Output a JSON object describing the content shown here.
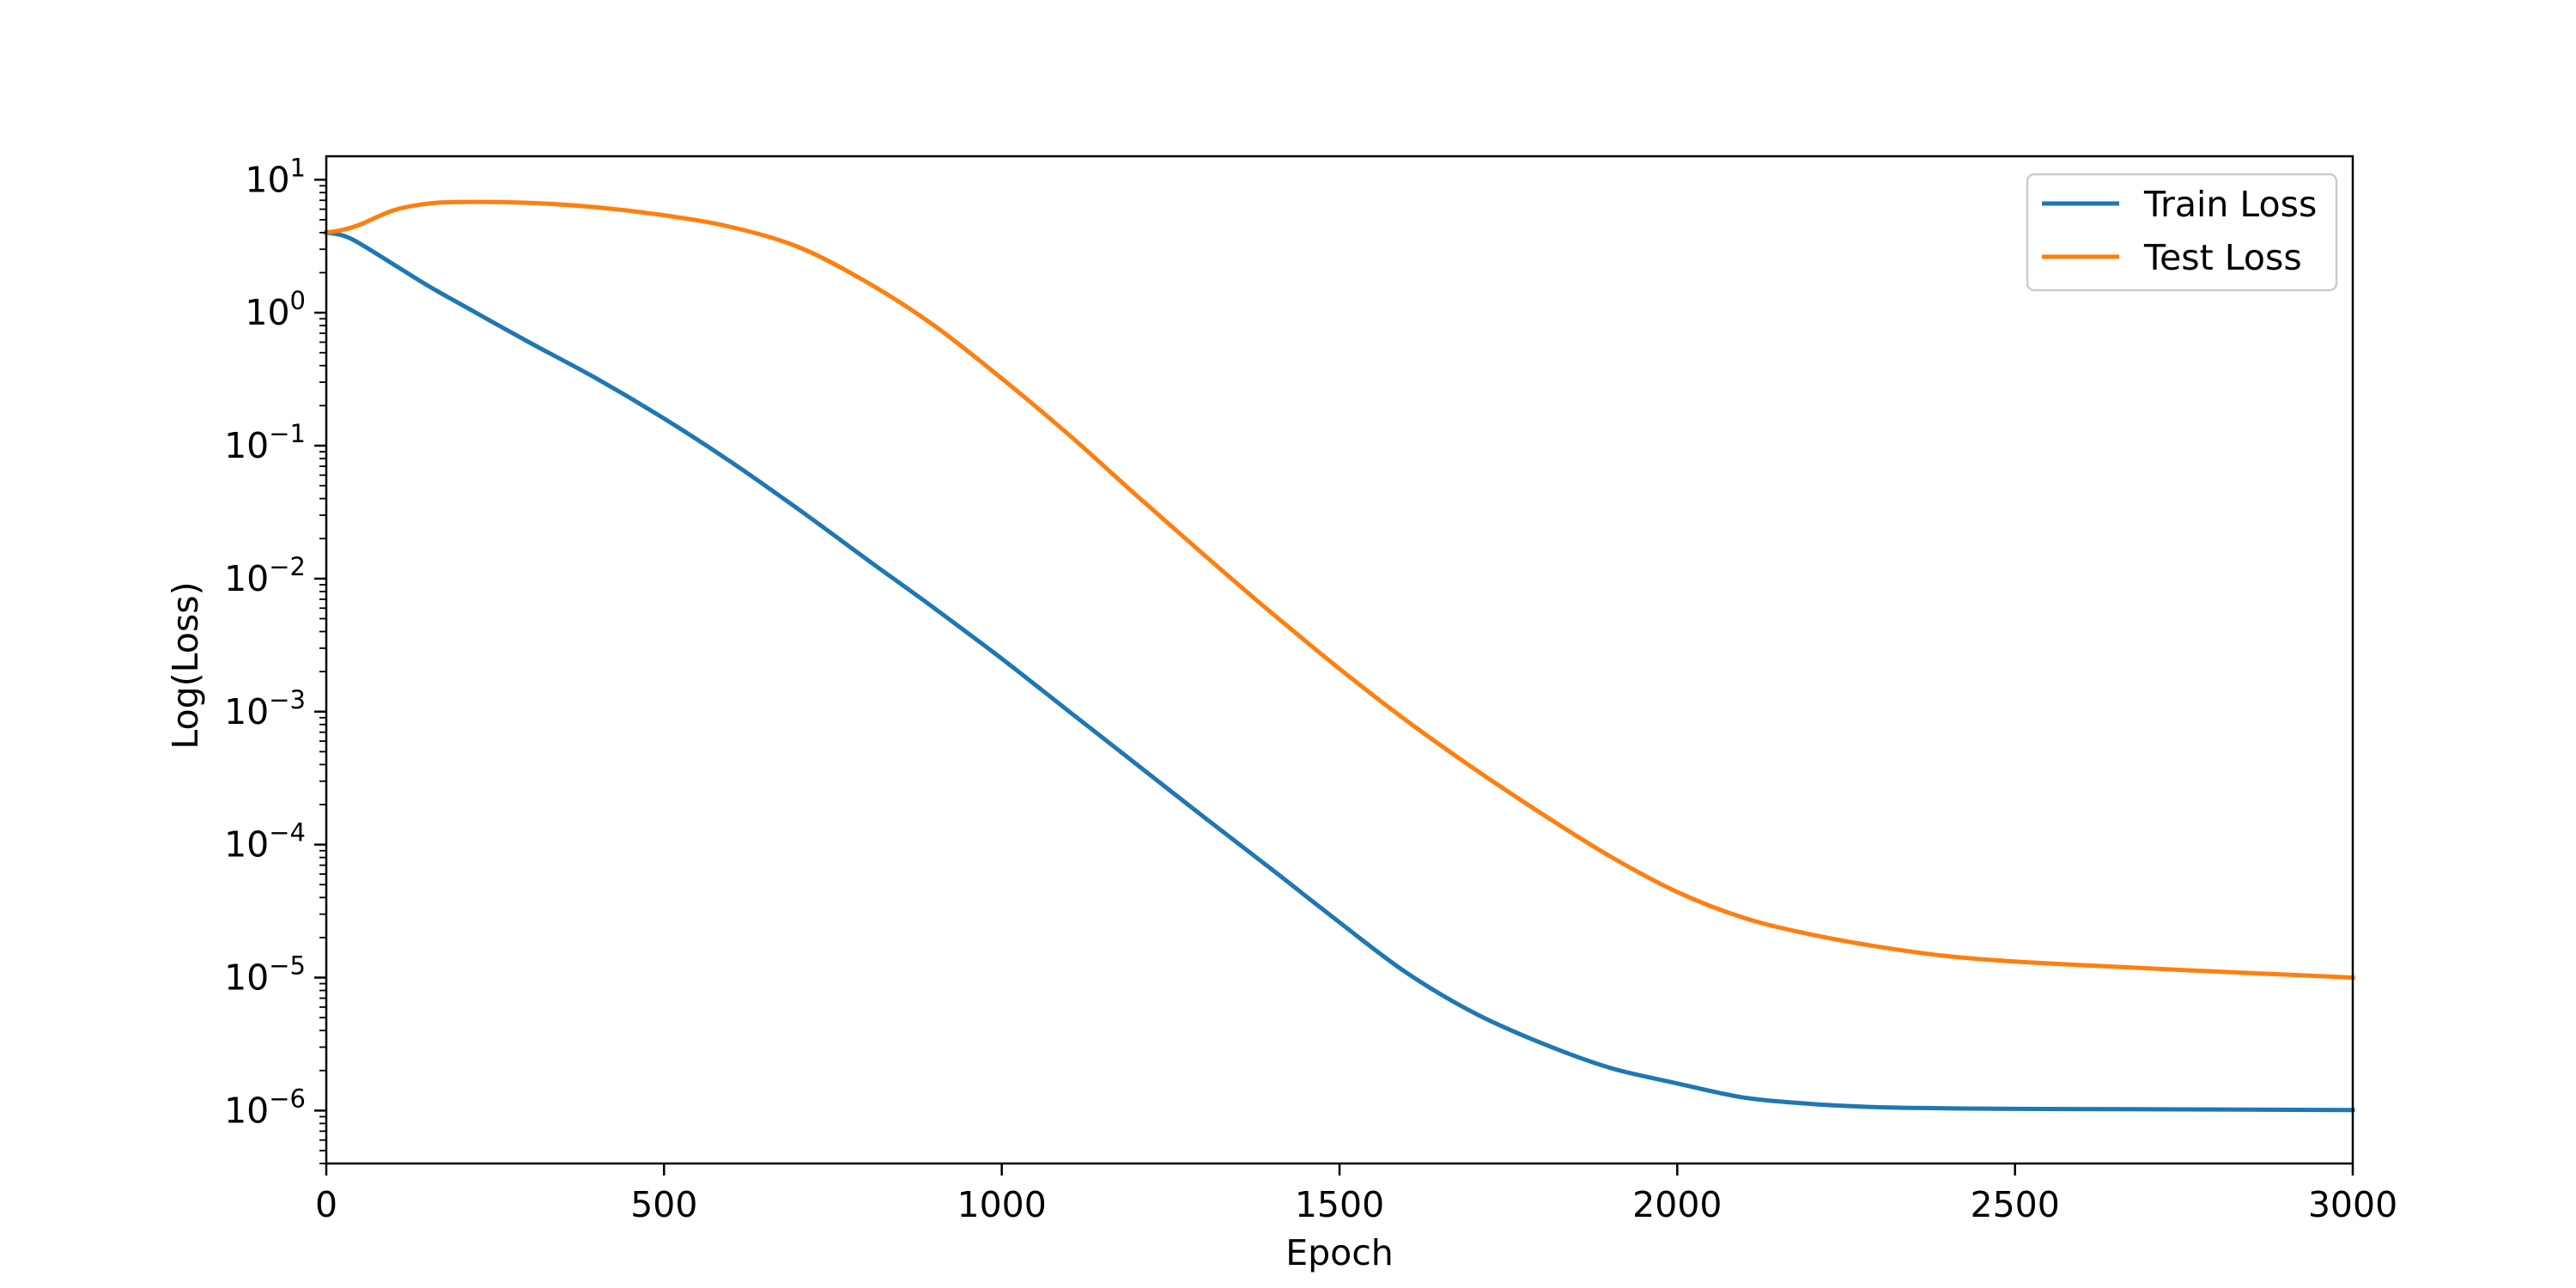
{
  "chart_data": {
    "type": "line",
    "xlabel": "Epoch",
    "ylabel": "Log(Loss)",
    "xlim": [
      0,
      3000
    ],
    "ylim": [
      4e-07,
      15
    ],
    "yscale": "log",
    "grid": false,
    "legend_position": "top-right",
    "x_ticks": [
      {
        "value": 0,
        "label": "0"
      },
      {
        "value": 500,
        "label": "500"
      },
      {
        "value": 1000,
        "label": "1000"
      },
      {
        "value": 1500,
        "label": "1500"
      },
      {
        "value": 2000,
        "label": "2000"
      },
      {
        "value": 2500,
        "label": "2500"
      },
      {
        "value": 3000,
        "label": "3000"
      }
    ],
    "y_ticks": [
      {
        "value": 10,
        "base": "10",
        "exp": "1"
      },
      {
        "value": 1,
        "base": "10",
        "exp": "0"
      },
      {
        "value": 0.1,
        "base": "10",
        "exp": "−1"
      },
      {
        "value": 0.01,
        "base": "10",
        "exp": "−2"
      },
      {
        "value": 0.001,
        "base": "10",
        "exp": "−3"
      },
      {
        "value": 0.0001,
        "base": "10",
        "exp": "−4"
      },
      {
        "value": 1e-05,
        "base": "10",
        "exp": "−5"
      },
      {
        "value": 1e-06,
        "base": "10",
        "exp": "−6"
      }
    ],
    "series": [
      {
        "name": "Train Loss",
        "color": "#1f77b4",
        "points": [
          [
            0,
            4.0
          ],
          [
            25,
            3.8
          ],
          [
            50,
            3.3
          ],
          [
            100,
            2.3
          ],
          [
            150,
            1.6
          ],
          [
            200,
            1.15
          ],
          [
            300,
            0.6
          ],
          [
            400,
            0.32
          ],
          [
            500,
            0.16
          ],
          [
            600,
            0.075
          ],
          [
            700,
            0.033
          ],
          [
            800,
            0.014
          ],
          [
            900,
            0.006
          ],
          [
            1000,
            0.0025
          ],
          [
            1100,
            0.001
          ],
          [
            1200,
            0.0004
          ],
          [
            1300,
            0.00016
          ],
          [
            1400,
            6.5e-05
          ],
          [
            1500,
            2.6e-05
          ],
          [
            1600,
            1.08e-05
          ],
          [
            1700,
            5.4e-06
          ],
          [
            1800,
            3.2e-06
          ],
          [
            1900,
            2.1e-06
          ],
          [
            2000,
            1.6e-06
          ],
          [
            2100,
            1.25e-06
          ],
          [
            2200,
            1.12e-06
          ],
          [
            2300,
            1.06e-06
          ],
          [
            2400,
            1.04e-06
          ],
          [
            2500,
            1.03e-06
          ],
          [
            2750,
            1.02e-06
          ],
          [
            3000,
            1.01e-06
          ]
        ]
      },
      {
        "name": "Test Loss",
        "color": "#ff7f0e",
        "points": [
          [
            0,
            4.0
          ],
          [
            25,
            4.2
          ],
          [
            50,
            4.6
          ],
          [
            100,
            5.9
          ],
          [
            150,
            6.6
          ],
          [
            200,
            6.8
          ],
          [
            300,
            6.7
          ],
          [
            400,
            6.2
          ],
          [
            500,
            5.4
          ],
          [
            600,
            4.4
          ],
          [
            700,
            3.1
          ],
          [
            800,
            1.7
          ],
          [
            900,
            0.8
          ],
          [
            1000,
            0.32
          ],
          [
            1100,
            0.12
          ],
          [
            1200,
            0.042
          ],
          [
            1300,
            0.015
          ],
          [
            1400,
            0.0055
          ],
          [
            1500,
            0.0021
          ],
          [
            1600,
            0.00085
          ],
          [
            1700,
            0.00037
          ],
          [
            1800,
            0.00017
          ],
          [
            1900,
            8.2e-05
          ],
          [
            2000,
            4.4e-05
          ],
          [
            2100,
            2.8e-05
          ],
          [
            2200,
            2.1e-05
          ],
          [
            2300,
            1.7e-05
          ],
          [
            2400,
            1.45e-05
          ],
          [
            2500,
            1.32e-05
          ],
          [
            2600,
            1.24e-05
          ],
          [
            2750,
            1.14e-05
          ],
          [
            3000,
            1e-05
          ]
        ]
      }
    ]
  }
}
